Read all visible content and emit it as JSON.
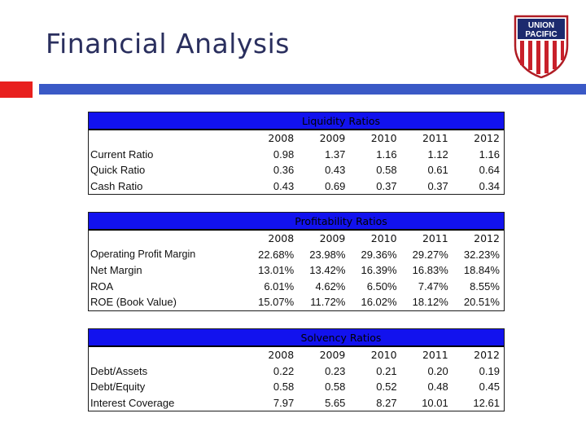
{
  "slide": {
    "title": "Financial Analysis"
  },
  "logo": {
    "line1": "UNION",
    "line2": "PACIFIC"
  },
  "colors": {
    "accent_red": "#e8201e",
    "accent_blue": "#3a59c6",
    "table_header": "#1212ee"
  },
  "tables": [
    {
      "title": "Liquidity Ratios",
      "years": [
        "2008",
        "2009",
        "2010",
        "2011",
        "2012"
      ],
      "rows": [
        {
          "label": "Current Ratio",
          "values": [
            "0.98",
            "1.37",
            "1.16",
            "1.12",
            "1.16"
          ]
        },
        {
          "label": "Quick Ratio",
          "values": [
            "0.36",
            "0.43",
            "0.58",
            "0.61",
            "0.64"
          ]
        },
        {
          "label": "Cash Ratio",
          "values": [
            "0.43",
            "0.69",
            "0.37",
            "0.37",
            "0.34"
          ]
        }
      ]
    },
    {
      "title": "Profitability Ratios",
      "years": [
        "2008",
        "2009",
        "2010",
        "2011",
        "2012"
      ],
      "rows": [
        {
          "label": "Operating Profit Margin",
          "values": [
            "22.68%",
            "23.98%",
            "29.36%",
            "29.27%",
            "32.23%"
          ]
        },
        {
          "label": "Net Margin",
          "values": [
            "13.01%",
            "13.42%",
            "16.39%",
            "16.83%",
            "18.84%"
          ]
        },
        {
          "label": "ROA",
          "values": [
            "6.01%",
            "4.62%",
            "6.50%",
            "7.47%",
            "8.55%"
          ]
        },
        {
          "label": "ROE (Book Value)",
          "values": [
            "15.07%",
            "11.72%",
            "16.02%",
            "18.12%",
            "20.51%"
          ]
        }
      ]
    },
    {
      "title": "Solvency Ratios",
      "years": [
        "2008",
        "2009",
        "2010",
        "2011",
        "2012"
      ],
      "rows": [
        {
          "label": "Debt/Assets",
          "values": [
            "0.22",
            "0.23",
            "0.21",
            "0.20",
            "0.19"
          ]
        },
        {
          "label": "Debt/Equity",
          "values": [
            "0.58",
            "0.58",
            "0.52",
            "0.48",
            "0.45"
          ]
        },
        {
          "label": "Interest Coverage",
          "values": [
            "7.97",
            "5.65",
            "8.27",
            "10.01",
            "12.61"
          ]
        }
      ]
    }
  ]
}
